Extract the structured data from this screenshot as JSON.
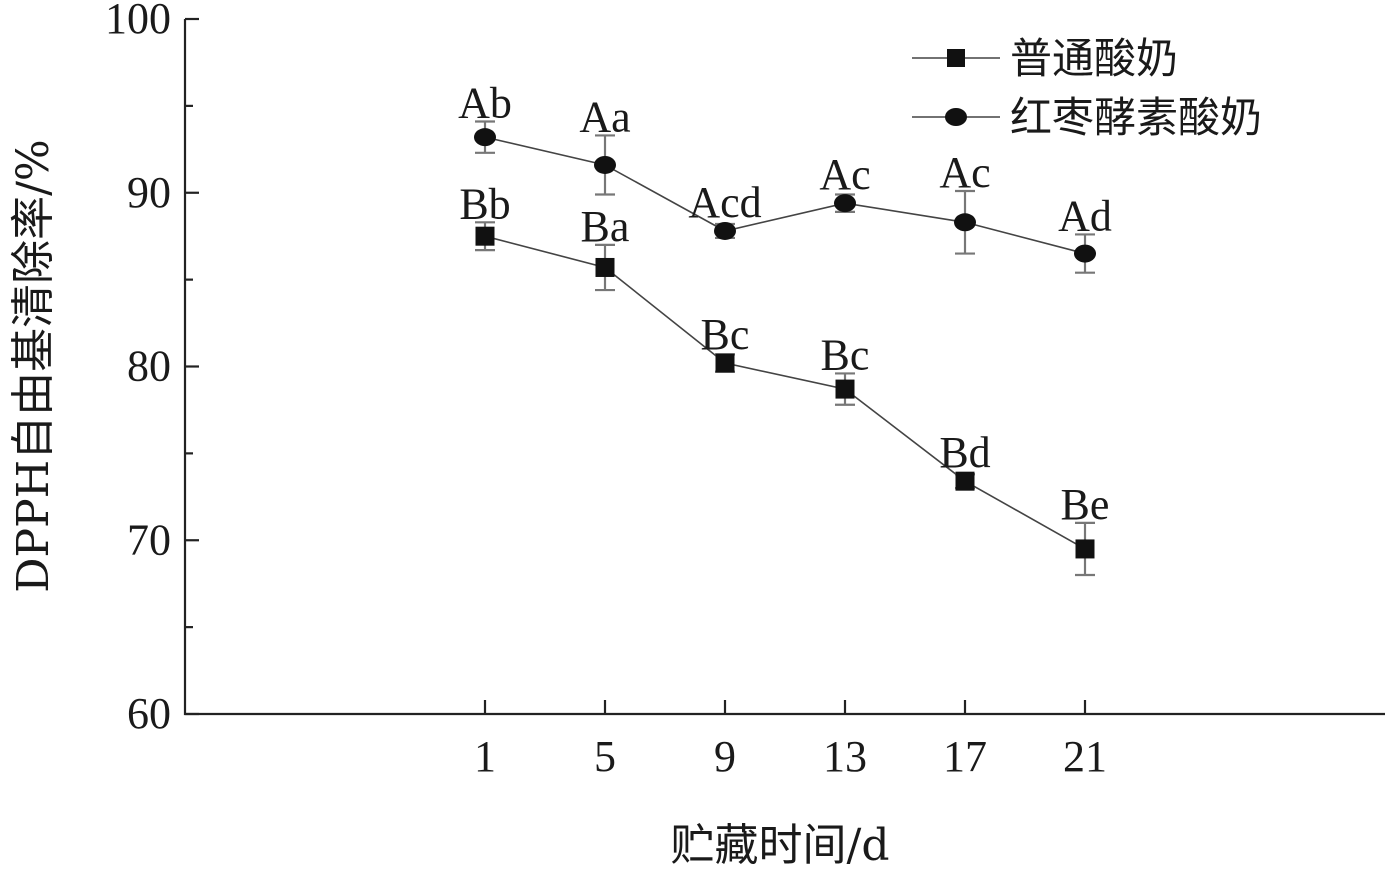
{
  "chart_data": {
    "type": "line",
    "xlabel": "贮藏时间/d",
    "ylabel": "DPPH自由基清除率/%",
    "x": [
      1,
      5,
      9,
      13,
      17,
      21
    ],
    "ylim": [
      60,
      100
    ],
    "yticks": [
      60,
      70,
      80,
      90,
      100
    ],
    "grid": false,
    "legend_position": "top-right",
    "series": [
      {
        "name": "普通酸奶",
        "marker": "square",
        "values": [
          87.5,
          85.7,
          80.2,
          78.7,
          73.4,
          69.5
        ],
        "errors": [
          0.8,
          1.3,
          0.5,
          0.9,
          0.4,
          1.5
        ],
        "labels": [
          "Bb",
          "Ba",
          "Bc",
          "Bc",
          "Bd",
          "Be"
        ]
      },
      {
        "name": "红枣酵素酸奶",
        "marker": "circle",
        "values": [
          93.2,
          91.6,
          87.8,
          89.4,
          88.3,
          86.5
        ],
        "errors": [
          0.9,
          1.7,
          0.4,
          0.5,
          1.8,
          1.1
        ],
        "labels": [
          "Ab",
          "Aa",
          "Acd",
          "Ac",
          "Ac",
          "Ad"
        ]
      }
    ]
  }
}
